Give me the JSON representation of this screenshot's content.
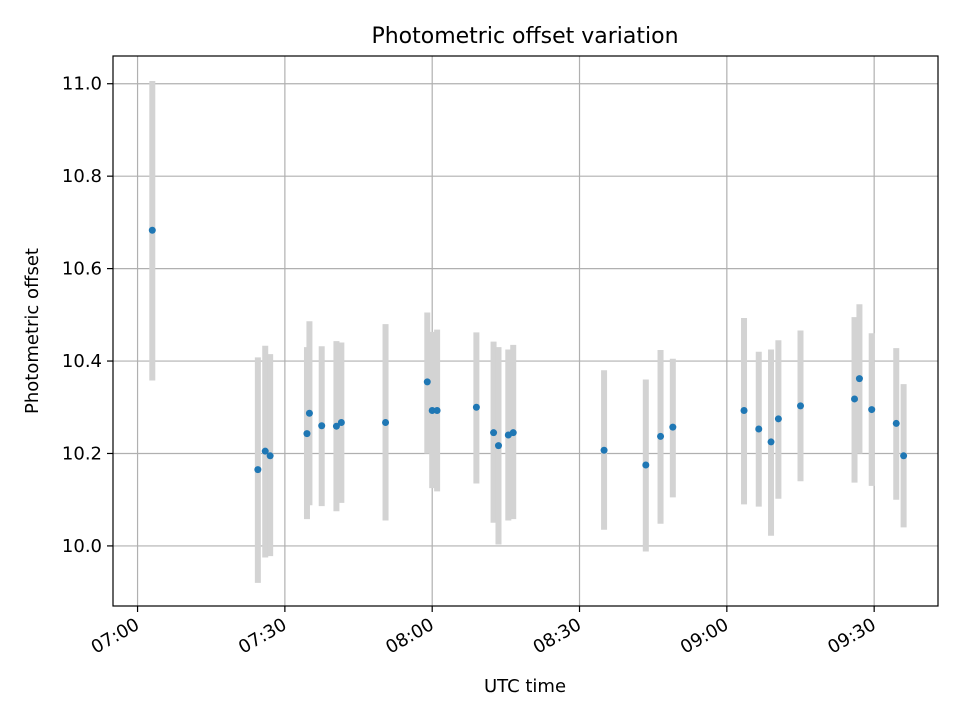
{
  "chart_data": {
    "type": "scatter",
    "title": "Photometric offset variation",
    "xlabel": "UTC time",
    "ylabel": "Photometric offset",
    "grid": true,
    "xlim": [
      "06:55",
      "09:43"
    ],
    "ylim": [
      9.87,
      11.06
    ],
    "xticks": [
      "07:00",
      "07:30",
      "08:00",
      "08:30",
      "09:00",
      "09:30"
    ],
    "yticks": [
      "10.0",
      "10.2",
      "10.4",
      "10.6",
      "10.8",
      "11.0"
    ],
    "colors": {
      "point": "#1f77b4",
      "errorbar": "#d3d3d3",
      "grid": "#b0b0b0"
    },
    "points": [
      {
        "x": "07:03",
        "y": 10.683,
        "ylow": 10.358,
        "yhigh": 11.006
      },
      {
        "x": "07:24.5",
        "y": 10.165,
        "ylow": 9.92,
        "yhigh": 10.408
      },
      {
        "x": "07:26",
        "y": 10.205,
        "ylow": 9.975,
        "yhigh": 10.433
      },
      {
        "x": "07:27",
        "y": 10.195,
        "ylow": 9.978,
        "yhigh": 10.415
      },
      {
        "x": "07:34.5",
        "y": 10.243,
        "ylow": 10.058,
        "yhigh": 10.43
      },
      {
        "x": "07:35",
        "y": 10.287,
        "ylow": 10.088,
        "yhigh": 10.486
      },
      {
        "x": "07:37.5",
        "y": 10.26,
        "ylow": 10.086,
        "yhigh": 10.432
      },
      {
        "x": "07:40.5",
        "y": 10.259,
        "ylow": 10.075,
        "yhigh": 10.443
      },
      {
        "x": "07:41.5",
        "y": 10.267,
        "ylow": 10.093,
        "yhigh": 10.44
      },
      {
        "x": "07:50.5",
        "y": 10.267,
        "ylow": 10.055,
        "yhigh": 10.48
      },
      {
        "x": "07:59",
        "y": 10.355,
        "ylow": 10.2,
        "yhigh": 10.505
      },
      {
        "x": "08:00",
        "y": 10.293,
        "ylow": 10.125,
        "yhigh": 10.463
      },
      {
        "x": "08:01",
        "y": 10.293,
        "ylow": 10.118,
        "yhigh": 10.468
      },
      {
        "x": "08:09",
        "y": 10.3,
        "ylow": 10.135,
        "yhigh": 10.462
      },
      {
        "x": "08:12.5",
        "y": 10.245,
        "ylow": 10.05,
        "yhigh": 10.442
      },
      {
        "x": "08:13.5",
        "y": 10.217,
        "ylow": 10.003,
        "yhigh": 10.43
      },
      {
        "x": "08:15.5",
        "y": 10.24,
        "ylow": 10.055,
        "yhigh": 10.425
      },
      {
        "x": "08:16.5",
        "y": 10.245,
        "ylow": 10.058,
        "yhigh": 10.435
      },
      {
        "x": "08:35",
        "y": 10.207,
        "ylow": 10.035,
        "yhigh": 10.38
      },
      {
        "x": "08:43.5",
        "y": 10.175,
        "ylow": 9.988,
        "yhigh": 10.36
      },
      {
        "x": "08:46.5",
        "y": 10.237,
        "ylow": 10.048,
        "yhigh": 10.424
      },
      {
        "x": "08:49",
        "y": 10.257,
        "ylow": 10.105,
        "yhigh": 10.405
      },
      {
        "x": "09:03.5",
        "y": 10.293,
        "ylow": 10.09,
        "yhigh": 10.493
      },
      {
        "x": "09:06.5",
        "y": 10.253,
        "ylow": 10.085,
        "yhigh": 10.42
      },
      {
        "x": "09:09",
        "y": 10.225,
        "ylow": 10.022,
        "yhigh": 10.425
      },
      {
        "x": "09:10.5",
        "y": 10.275,
        "ylow": 10.102,
        "yhigh": 10.445
      },
      {
        "x": "09:15",
        "y": 10.303,
        "ylow": 10.14,
        "yhigh": 10.466
      },
      {
        "x": "09:26",
        "y": 10.318,
        "ylow": 10.137,
        "yhigh": 10.495
      },
      {
        "x": "09:27",
        "y": 10.362,
        "ylow": 10.2,
        "yhigh": 10.523
      },
      {
        "x": "09:29.5",
        "y": 10.295,
        "ylow": 10.13,
        "yhigh": 10.46
      },
      {
        "x": "09:34.5",
        "y": 10.265,
        "ylow": 10.1,
        "yhigh": 10.428
      },
      {
        "x": "09:36",
        "y": 10.195,
        "ylow": 10.04,
        "yhigh": 10.35
      }
    ]
  }
}
